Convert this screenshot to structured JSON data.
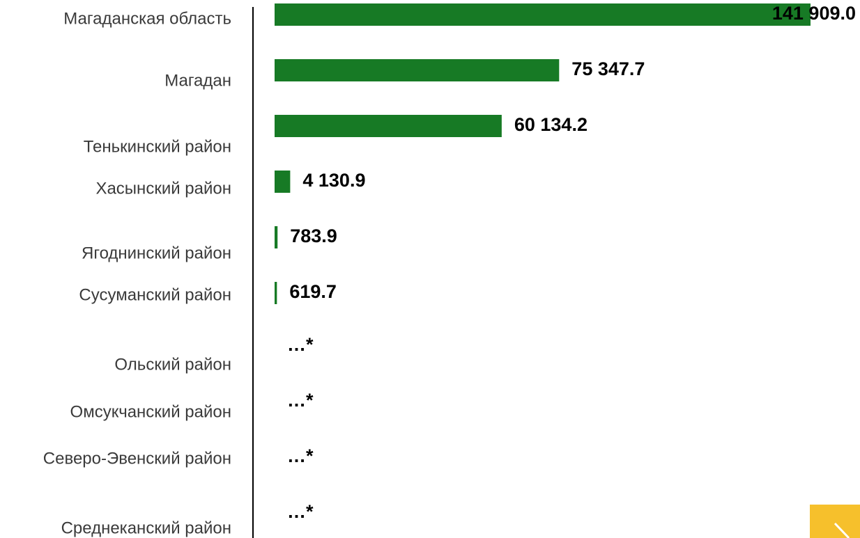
{
  "chart_data": {
    "type": "bar",
    "orientation": "horizontal",
    "categories": [
      "Магаданская область",
      "Магадан",
      "Тенькинский район",
      "Хасынский район",
      "Ягоднинский район",
      "Сусуманский район",
      "Ольский район",
      "Омсукчанский район",
      "Северо-Эвенский район",
      "Среднеканский район"
    ],
    "values": [
      141909.0,
      75347.7,
      60134.2,
      4130.9,
      783.9,
      619.7,
      null,
      null,
      null,
      null
    ],
    "value_labels": [
      "141 909.0",
      "75 347.7",
      "60 134.2",
      "4 130.9",
      "783.9",
      "619.7",
      "…*",
      "…*",
      "…*",
      "…*"
    ],
    "color": "#177a25"
  }
}
